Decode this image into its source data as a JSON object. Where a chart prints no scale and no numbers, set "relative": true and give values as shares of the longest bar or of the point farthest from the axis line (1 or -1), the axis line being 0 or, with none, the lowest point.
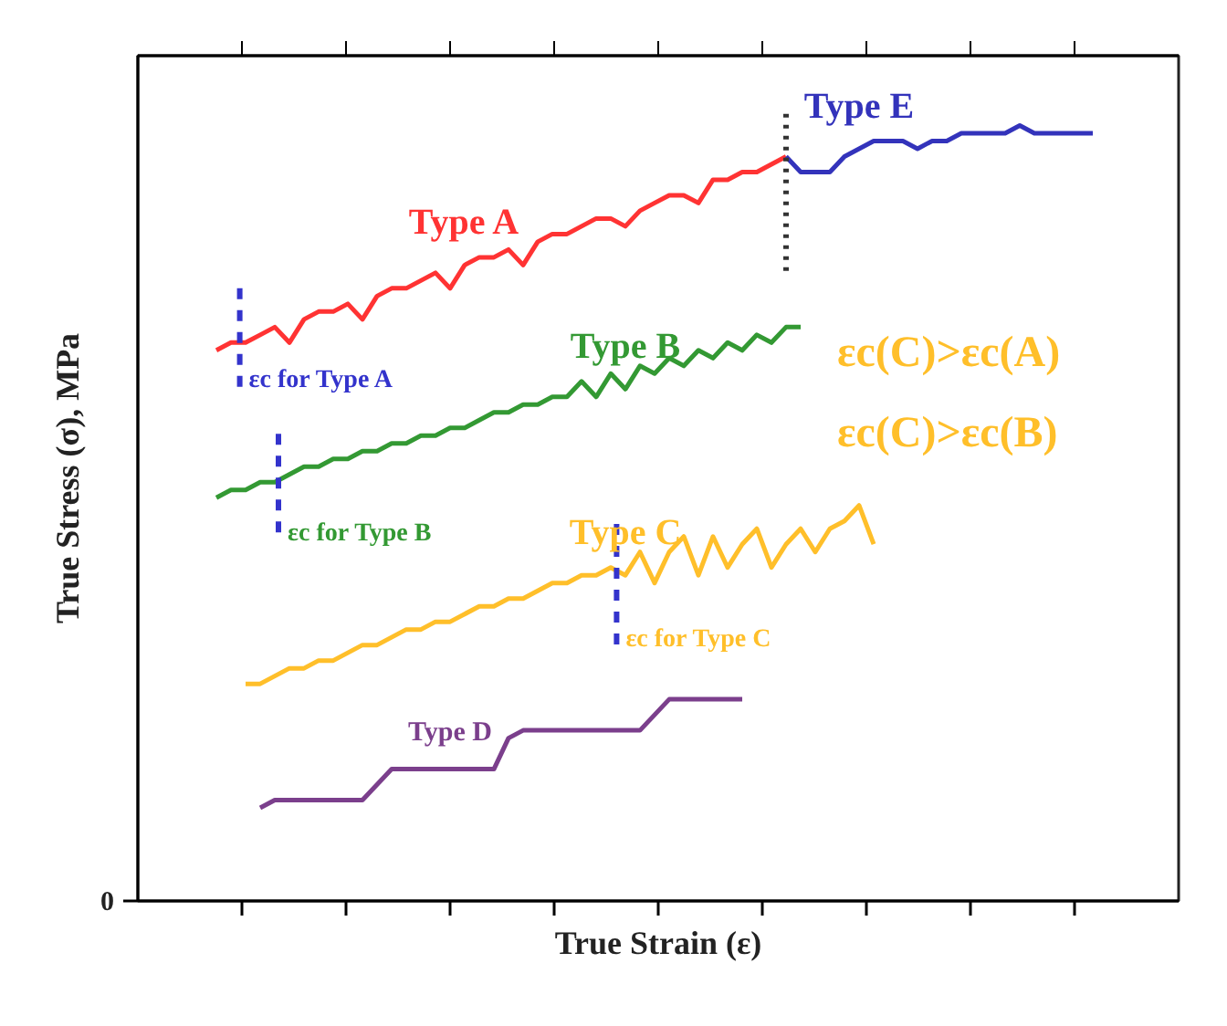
{
  "chart_data": {
    "type": "line",
    "relative": true,
    "xlabel": "True Strain (ε)",
    "ylabel": "True Stress (σ), MPa",
    "line_style": "solid",
    "categories": [
      null,
      null,
      null,
      null,
      null,
      null,
      null,
      null,
      null,
      null,
      null,
      null,
      null,
      null,
      null,
      null,
      null,
      null,
      null,
      null,
      null,
      null,
      null,
      null,
      null,
      null,
      null,
      null,
      null,
      null,
      null,
      null,
      null,
      null,
      null,
      null,
      null,
      null,
      null,
      null,
      null,
      null,
      null,
      null,
      null,
      null,
      null,
      null,
      null,
      null,
      null,
      null,
      null,
      null,
      null,
      null,
      null,
      null,
      null,
      null,
      null
    ],
    "annotations": [
      "0",
      "εc for Type A",
      "εc for Type B",
      "εc for Type C",
      "εc(C)>εc(A)",
      "εc(C)>εc(B)"
    ],
    "series": [
      {
        "name": "Type A",
        "color": "#ff3333",
        "values": [
          0.71,
          0.72,
          0.72,
          0.73,
          0.74,
          0.72,
          0.75,
          0.76,
          0.76,
          0.77,
          0.75,
          0.78,
          0.79,
          0.79,
          0.8,
          0.81,
          0.79,
          0.82,
          0.83,
          0.83,
          0.84,
          0.82,
          0.85,
          0.86,
          0.86,
          0.87,
          0.88,
          0.88,
          0.87,
          0.89,
          0.9,
          0.91,
          0.91,
          0.9,
          0.93,
          0.93,
          0.94,
          0.94,
          0.95,
          0.96,
          null,
          null,
          null,
          null,
          null,
          null,
          null,
          null,
          null,
          null,
          null,
          null,
          null,
          null,
          null,
          null,
          null,
          null,
          null,
          null,
          null
        ]
      },
      {
        "name": "Type B",
        "color": "#339933",
        "values": [
          0.52,
          0.53,
          0.53,
          0.54,
          0.54,
          0.55,
          0.56,
          0.56,
          0.57,
          0.57,
          0.58,
          0.58,
          0.59,
          0.59,
          0.6,
          0.6,
          0.61,
          0.61,
          0.62,
          0.63,
          0.63,
          0.64,
          0.64,
          0.65,
          0.65,
          0.67,
          0.65,
          0.68,
          0.66,
          0.69,
          0.68,
          0.7,
          0.69,
          0.71,
          0.7,
          0.72,
          0.71,
          0.73,
          0.72,
          0.74,
          0.74,
          null,
          null,
          null,
          null,
          null,
          null,
          null,
          null,
          null,
          null,
          null,
          null,
          null,
          null,
          null,
          null,
          null,
          null,
          null,
          null
        ]
      },
      {
        "name": "Type C",
        "color": "#ffbf2a",
        "values": [
          null,
          null,
          0.28,
          0.28,
          0.29,
          0.3,
          0.3,
          0.31,
          0.31,
          0.32,
          0.33,
          0.33,
          0.34,
          0.35,
          0.35,
          0.36,
          0.36,
          0.37,
          0.38,
          0.38,
          0.39,
          0.39,
          0.4,
          0.41,
          0.41,
          0.42,
          0.42,
          0.43,
          0.42,
          0.45,
          0.41,
          0.45,
          0.47,
          0.42,
          0.47,
          0.43,
          0.46,
          0.48,
          0.43,
          0.46,
          0.48,
          0.45,
          0.48,
          0.49,
          0.51,
          0.46,
          null,
          null,
          null,
          null,
          null,
          null,
          null,
          null,
          null,
          null,
          null,
          null,
          null,
          null,
          null
        ]
      },
      {
        "name": "Type D",
        "color": "#7b3f8c",
        "values": [
          null,
          null,
          null,
          0.12,
          0.13,
          0.13,
          0.13,
          0.13,
          0.13,
          0.13,
          0.13,
          0.15,
          0.17,
          0.17,
          0.17,
          0.17,
          0.17,
          0.17,
          0.17,
          0.17,
          0.21,
          0.22,
          0.22,
          0.22,
          0.22,
          0.22,
          0.22,
          0.22,
          0.22,
          0.22,
          0.24,
          0.26,
          0.26,
          0.26,
          0.26,
          0.26,
          0.26,
          null,
          null,
          null,
          null,
          null,
          null,
          null,
          null,
          null,
          null,
          null,
          null,
          null,
          null,
          null,
          null,
          null,
          null,
          null,
          null,
          null,
          null,
          null,
          null
        ]
      },
      {
        "name": "Type E",
        "color": "#3333bb",
        "values": [
          null,
          null,
          null,
          null,
          null,
          null,
          null,
          null,
          null,
          null,
          null,
          null,
          null,
          null,
          null,
          null,
          null,
          null,
          null,
          null,
          null,
          null,
          null,
          null,
          null,
          null,
          null,
          null,
          null,
          null,
          null,
          null,
          null,
          null,
          null,
          null,
          null,
          null,
          null,
          0.96,
          0.94,
          0.94,
          0.94,
          0.96,
          0.97,
          0.98,
          0.98,
          0.98,
          0.97,
          0.98,
          0.98,
          0.99,
          0.99,
          0.99,
          0.99,
          1.0,
          0.99,
          0.99,
          0.99,
          0.99,
          0.99
        ]
      }
    ]
  }
}
